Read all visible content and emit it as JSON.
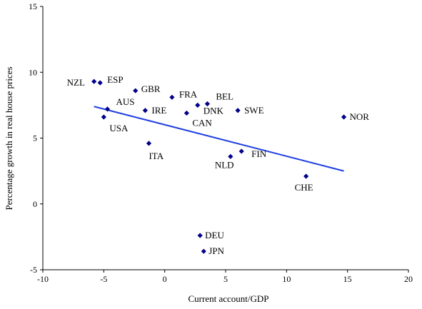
{
  "chart_data": {
    "type": "scatter",
    "xlabel": "Current account/GDP",
    "ylabel": "Percentage growth in real house prices",
    "xlim": [
      -10,
      20
    ],
    "ylim": [
      -5,
      15
    ],
    "xticks": [
      -10,
      -5,
      0,
      5,
      10,
      15,
      20
    ],
    "yticks": [
      -5,
      0,
      5,
      10,
      15
    ],
    "xtick_labels": [
      "-10",
      "-5",
      "0",
      "5",
      "10",
      "15",
      "20"
    ],
    "ytick_labels": [
      "-5",
      "0",
      "5",
      "10",
      "15"
    ],
    "grid": false,
    "legend": "none",
    "marker_color": "#00008B",
    "trendline_color": "#1F3FE0",
    "points": [
      {
        "label": "NZL",
        "x": -5.8,
        "y": 9.3
      },
      {
        "label": "ESP",
        "x": -5.3,
        "y": 9.2
      },
      {
        "label": "AUS",
        "x": -4.7,
        "y": 7.2
      },
      {
        "label": "USA",
        "x": -5.0,
        "y": 6.6
      },
      {
        "label": "GBR",
        "x": -2.4,
        "y": 8.6
      },
      {
        "label": "IRE",
        "x": -1.6,
        "y": 7.1
      },
      {
        "label": "ITA",
        "x": -1.3,
        "y": 4.6
      },
      {
        "label": "FRA",
        "x": 0.6,
        "y": 8.1
      },
      {
        "label": "CAN",
        "x": 1.8,
        "y": 6.9
      },
      {
        "label": "DNK",
        "x": 2.7,
        "y": 7.5
      },
      {
        "label": "BEL",
        "x": 3.5,
        "y": 7.6
      },
      {
        "label": "SWE",
        "x": 6.0,
        "y": 7.1
      },
      {
        "label": "NLD",
        "x": 5.4,
        "y": 3.6
      },
      {
        "label": "FIN",
        "x": 6.3,
        "y": 4.0
      },
      {
        "label": "CHE",
        "x": 11.6,
        "y": 2.1
      },
      {
        "label": "NOR",
        "x": 14.7,
        "y": 6.6
      },
      {
        "label": "DEU",
        "x": 2.9,
        "y": -2.4
      },
      {
        "label": "JPN",
        "x": 3.2,
        "y": -3.6
      }
    ],
    "trendline": {
      "x": [
        -5.8,
        14.7
      ],
      "y": [
        7.4,
        2.5
      ]
    }
  }
}
